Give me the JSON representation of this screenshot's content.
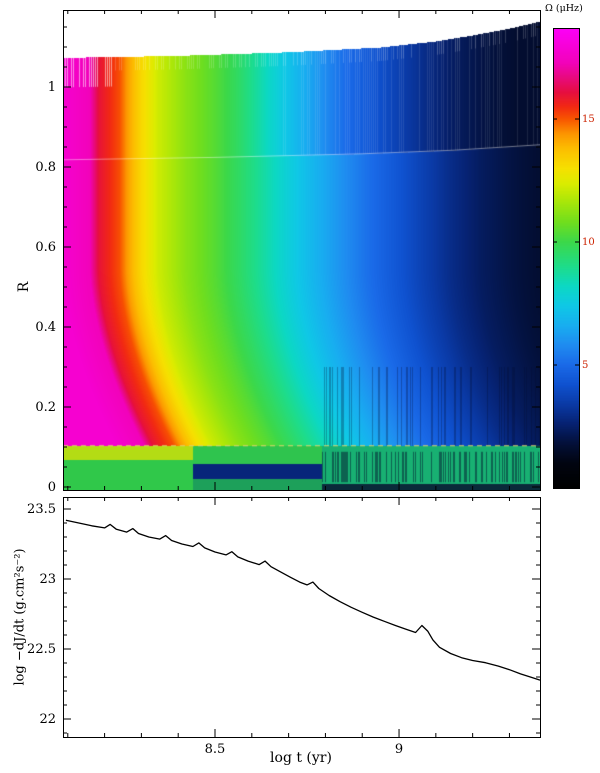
{
  "chart_data": [
    {
      "type": "heatmap",
      "ylabel": "R",
      "xlim": [
        8.087,
        9.383
      ],
      "ylim": [
        0,
        1.1925
      ],
      "yticks": [
        0,
        0.2,
        0.4,
        0.6,
        0.8,
        1
      ],
      "ytick_labels": [
        "0",
        "0.2",
        "0.4",
        "0.6",
        "0.8",
        "1"
      ],
      "colorbar": {
        "title": "Ω (μHz)",
        "range": [
          0,
          18.7
        ],
        "ticks": [
          5,
          10,
          15
        ],
        "tick_labels": [
          "5",
          "10",
          "15"
        ],
        "tick_label_color": "#cc2200"
      },
      "colormap_stops": [
        [
          0.0,
          "#000000"
        ],
        [
          1.0,
          "#010511"
        ],
        [
          1.8,
          "#03103a"
        ],
        [
          2.6,
          "#062272"
        ],
        [
          3.4,
          "#0a3aa6"
        ],
        [
          4.2,
          "#0f52d0"
        ],
        [
          5.0,
          "#1a6ae8"
        ],
        [
          5.8,
          "#1f8cf0"
        ],
        [
          6.6,
          "#18aef0"
        ],
        [
          7.4,
          "#0fc8e6"
        ],
        [
          8.2,
          "#0cd8c4"
        ],
        [
          9.0,
          "#1edc8a"
        ],
        [
          10.0,
          "#3cd84a"
        ],
        [
          10.8,
          "#70de1e"
        ],
        [
          11.6,
          "#a6e60a"
        ],
        [
          12.4,
          "#dcec00"
        ],
        [
          13.0,
          "#f6e000"
        ],
        [
          13.8,
          "#fcbe00"
        ],
        [
          14.4,
          "#fc9600"
        ],
        [
          15.0,
          "#f85600"
        ],
        [
          15.5,
          "#f22a12"
        ],
        [
          16.1,
          "#e60e40"
        ],
        [
          16.7,
          "#e80a7e"
        ],
        [
          17.3,
          "#f202ba"
        ],
        [
          18.7,
          "#fc00f8"
        ]
      ],
      "omega_vs_logt": [
        [
          8.087,
          17.8
        ],
        [
          8.16,
          17.3
        ],
        [
          8.185,
          16.0
        ],
        [
          8.24,
          15.1
        ],
        [
          8.265,
          14.2
        ],
        [
          8.3,
          13.2
        ],
        [
          8.345,
          12.2
        ],
        [
          8.42,
          11.2
        ],
        [
          8.5,
          10.4
        ],
        [
          8.565,
          9.6
        ],
        [
          8.63,
          8.7
        ],
        [
          8.7,
          7.7
        ],
        [
          8.77,
          6.8
        ],
        [
          8.84,
          6.0
        ],
        [
          8.91,
          5.2
        ],
        [
          8.98,
          4.5
        ],
        [
          9.06,
          3.7
        ],
        [
          9.14,
          2.95
        ],
        [
          9.22,
          2.35
        ],
        [
          9.3,
          1.95
        ],
        [
          9.39,
          1.6
        ]
      ],
      "surface_radius": [
        [
          8.087,
          1.074
        ],
        [
          8.4,
          1.079
        ],
        [
          8.7,
          1.088
        ],
        [
          8.95,
          1.1
        ],
        [
          9.1,
          1.115
        ],
        [
          9.2,
          1.13
        ],
        [
          9.3,
          1.147
        ],
        [
          9.39,
          1.166
        ]
      ],
      "convective_base": [
        [
          8.087,
          0.818
        ],
        [
          8.5,
          0.824
        ],
        [
          8.9,
          0.833
        ],
        [
          9.15,
          0.842
        ],
        [
          9.39,
          0.856
        ]
      ],
      "dashed_line_r": 0.103,
      "dashed_line_color": "#ded26e",
      "core_regions": [
        {
          "t0": 8.087,
          "t1": 8.44,
          "layers": [
            {
              "r0": 0.068,
              "r1": 0.103,
              "color": "#b4dc14"
            },
            {
              "r0": 0.0,
              "r1": 0.068,
              "color": "#30c84a"
            }
          ]
        },
        {
          "t0": 8.44,
          "t1": 8.79,
          "layers": [
            {
              "r0": 0.06,
              "r1": 0.103,
              "color": "#2fc44e"
            },
            {
              "r0": 0.022,
              "r1": 0.06,
              "color": "#07267a"
            },
            {
              "r0": 0.0,
              "r1": 0.022,
              "color": "#1da05a"
            }
          ]
        },
        {
          "t0": 8.79,
          "t1": 9.39,
          "layers": [
            {
              "r0": 0.01,
              "r1": 0.103,
              "color": "#18b072"
            },
            {
              "r0": 0.0,
              "r1": 0.01,
              "color": "#0a2a3a"
            }
          ]
        }
      ]
    },
    {
      "type": "line",
      "xlabel": "log t  (yr)",
      "ylabel": "log −dJ/dt (g.cm²s⁻²)",
      "xlim": [
        8.087,
        9.383
      ],
      "ylim": [
        21.87,
        23.59
      ],
      "xticks": [
        8.5,
        9
      ],
      "xtick_labels": [
        "8.5",
        "9"
      ],
      "yticks": [
        22,
        22.5,
        23,
        23.5
      ],
      "ytick_labels": [
        "22",
        "22.5",
        "23",
        "23.5"
      ],
      "points": [
        [
          8.095,
          23.42
        ],
        [
          8.13,
          23.4
        ],
        [
          8.165,
          23.38
        ],
        [
          8.2,
          23.365
        ],
        [
          8.215,
          23.39
        ],
        [
          8.232,
          23.355
        ],
        [
          8.26,
          23.335
        ],
        [
          8.277,
          23.36
        ],
        [
          8.292,
          23.325
        ],
        [
          8.32,
          23.3
        ],
        [
          8.35,
          23.285
        ],
        [
          8.366,
          23.31
        ],
        [
          8.382,
          23.275
        ],
        [
          8.41,
          23.25
        ],
        [
          8.44,
          23.232
        ],
        [
          8.456,
          23.258
        ],
        [
          8.472,
          23.222
        ],
        [
          8.5,
          23.193
        ],
        [
          8.53,
          23.172
        ],
        [
          8.546,
          23.195
        ],
        [
          8.562,
          23.158
        ],
        [
          8.59,
          23.128
        ],
        [
          8.62,
          23.103
        ],
        [
          8.636,
          23.128
        ],
        [
          8.652,
          23.088
        ],
        [
          8.68,
          23.048
        ],
        [
          8.705,
          23.012
        ],
        [
          8.73,
          22.978
        ],
        [
          8.75,
          22.958
        ],
        [
          8.766,
          22.978
        ],
        [
          8.782,
          22.932
        ],
        [
          8.81,
          22.882
        ],
        [
          8.84,
          22.838
        ],
        [
          8.87,
          22.798
        ],
        [
          8.9,
          22.762
        ],
        [
          8.93,
          22.728
        ],
        [
          8.96,
          22.698
        ],
        [
          8.99,
          22.668
        ],
        [
          9.02,
          22.64
        ],
        [
          9.045,
          22.618
        ],
        [
          9.062,
          22.668
        ],
        [
          9.078,
          22.628
        ],
        [
          9.092,
          22.565
        ],
        [
          9.11,
          22.512
        ],
        [
          9.14,
          22.468
        ],
        [
          9.17,
          22.438
        ],
        [
          9.2,
          22.418
        ],
        [
          9.235,
          22.402
        ],
        [
          9.27,
          22.378
        ],
        [
          9.3,
          22.352
        ],
        [
          9.33,
          22.322
        ],
        [
          9.36,
          22.297
        ],
        [
          9.383,
          22.278
        ]
      ]
    }
  ]
}
